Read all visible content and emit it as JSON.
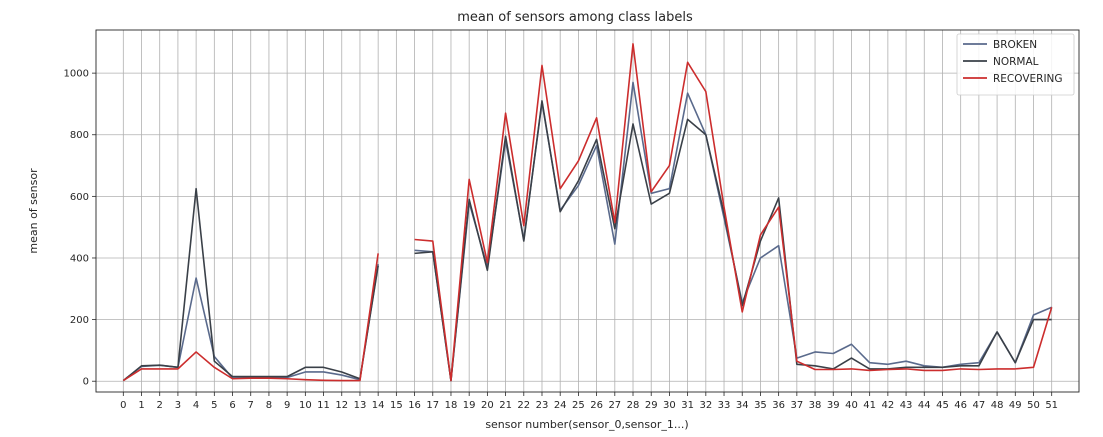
{
  "chart_data": {
    "type": "line",
    "title": "mean of sensors among class labels",
    "xlabel": "sensor number(sensor_0,sensor_1...)",
    "ylabel": "mean of sensor",
    "x": [
      0,
      1,
      2,
      3,
      4,
      5,
      6,
      7,
      8,
      9,
      10,
      11,
      12,
      13,
      14,
      15,
      16,
      17,
      18,
      19,
      20,
      21,
      22,
      23,
      24,
      25,
      26,
      27,
      28,
      29,
      30,
      31,
      32,
      33,
      34,
      35,
      36,
      37,
      38,
      39,
      40,
      41,
      42,
      43,
      44,
      45,
      46,
      47,
      48,
      49,
      50,
      51
    ],
    "x_tick_labels": [
      "0",
      "1",
      "2",
      "3",
      "4",
      "5",
      "6",
      "7",
      "8",
      "9",
      "10",
      "11",
      "12",
      "13",
      "14",
      "15",
      "16",
      "17",
      "18",
      "19",
      "20",
      "21",
      "22",
      "23",
      "24",
      "25",
      "26",
      "27",
      "28",
      "29",
      "30",
      "31",
      "32",
      "33",
      "34",
      "35",
      "36",
      "37",
      "38",
      "39",
      "40",
      "41",
      "42",
      "43",
      "44",
      "45",
      "46",
      "47",
      "48",
      "49",
      "50",
      "51"
    ],
    "xlim": [
      -1.5,
      52.5
    ],
    "ylim": [
      -35,
      1140
    ],
    "y_ticks": [
      0,
      200,
      400,
      600,
      800,
      1000
    ],
    "y_tick_labels": [
      "0",
      "200",
      "400",
      "600",
      "800",
      "1000"
    ],
    "grid": true,
    "legend_position": "top-right",
    "series": [
      {
        "name": "BROKEN",
        "color": "#5a6a8c",
        "values": [
          2,
          48,
          52,
          45,
          335,
          80,
          10,
          12,
          12,
          12,
          30,
          30,
          20,
          5,
          380,
          null,
          425,
          420,
          2,
          580,
          370,
          780,
          460,
          905,
          555,
          635,
          765,
          445,
          970,
          610,
          625,
          935,
          800,
          530,
          255,
          400,
          440,
          75,
          95,
          90,
          120,
          60,
          55,
          65,
          50,
          45,
          55,
          60,
          160,
          60,
          215,
          240
        ]
      },
      {
        "name": "NORMAL",
        "color": "#3a4048",
        "values": [
          2,
          50,
          52,
          45,
          625,
          65,
          15,
          15,
          15,
          15,
          45,
          45,
          30,
          8,
          375,
          null,
          415,
          420,
          2,
          590,
          360,
          795,
          455,
          910,
          550,
          650,
          785,
          495,
          835,
          575,
          610,
          850,
          800,
          545,
          245,
          455,
          595,
          55,
          50,
          40,
          75,
          40,
          40,
          45,
          45,
          45,
          50,
          50,
          160,
          60,
          200,
          200
        ]
      },
      {
        "name": "RECOVERING",
        "color": "#cc2d2d",
        "values": [
          2,
          40,
          40,
          40,
          95,
          45,
          8,
          10,
          10,
          8,
          5,
          3,
          2,
          2,
          415,
          null,
          460,
          455,
          2,
          655,
          385,
          870,
          505,
          1025,
          625,
          715,
          855,
          515,
          1095,
          615,
          700,
          1035,
          940,
          565,
          225,
          475,
          565,
          65,
          38,
          38,
          40,
          35,
          38,
          40,
          35,
          35,
          40,
          38,
          40,
          40,
          45,
          240
        ]
      }
    ]
  }
}
